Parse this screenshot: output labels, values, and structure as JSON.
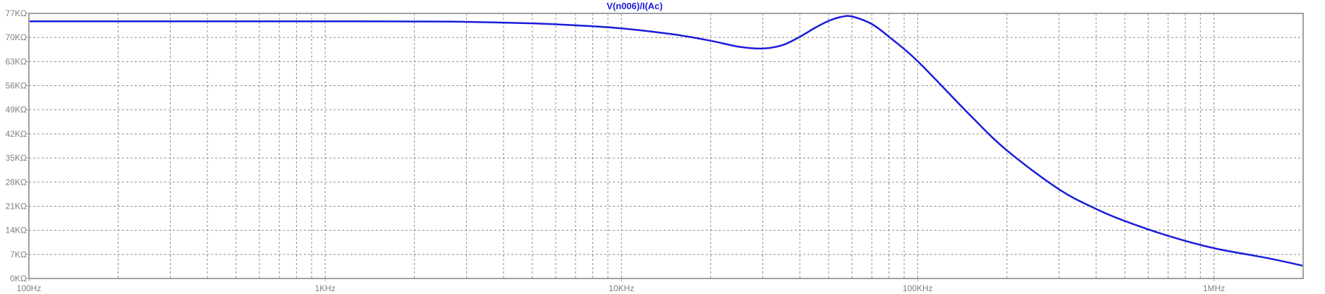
{
  "chart_data": {
    "type": "line",
    "title": "V(n006)/I(Ac)",
    "xscale": "log",
    "xlim": [
      100,
      2000000
    ],
    "ylim": [
      0,
      77000
    ],
    "grid": true,
    "x_tick_values": [
      100,
      1000,
      10000,
      100000,
      1000000
    ],
    "x_tick_labels": [
      "100Hz",
      "1KHz",
      "10KHz",
      "100KHz",
      "1MHz"
    ],
    "y_tick_values": [
      0,
      7000,
      14000,
      21000,
      28000,
      35000,
      42000,
      49000,
      56000,
      63000,
      70000,
      77000
    ],
    "y_tick_labels": [
      "0KΩ",
      "7KΩ",
      "14KΩ",
      "21KΩ",
      "28KΩ",
      "35KΩ",
      "42KΩ",
      "49KΩ",
      "56KΩ",
      "63KΩ",
      "70KΩ",
      "77KΩ"
    ],
    "colors": {
      "trace": "#1a1adc",
      "grid": "#8c8c8c",
      "frame": "#a0a0a0",
      "labels": "#808080"
    },
    "series": [
      {
        "x": [
          100,
          1000,
          2000,
          3000,
          5000,
          7000,
          10000,
          15000,
          20000,
          25000,
          30000,
          35000,
          40000,
          45000,
          50000,
          55000,
          60000,
          70000,
          80000,
          100000,
          150000,
          200000,
          300000,
          400000,
          500000,
          700000,
          1000000,
          1500000,
          2000000
        ],
        "y": [
          74700,
          74700,
          74650,
          74550,
          74100,
          73550,
          72650,
          70900,
          69050,
          67300,
          66800,
          67800,
          70200,
          72800,
          74800,
          75950,
          76100,
          73900,
          70200,
          63100,
          47500,
          37200,
          25900,
          20200,
          16700,
          12400,
          8800,
          6000,
          3700
        ]
      }
    ]
  }
}
